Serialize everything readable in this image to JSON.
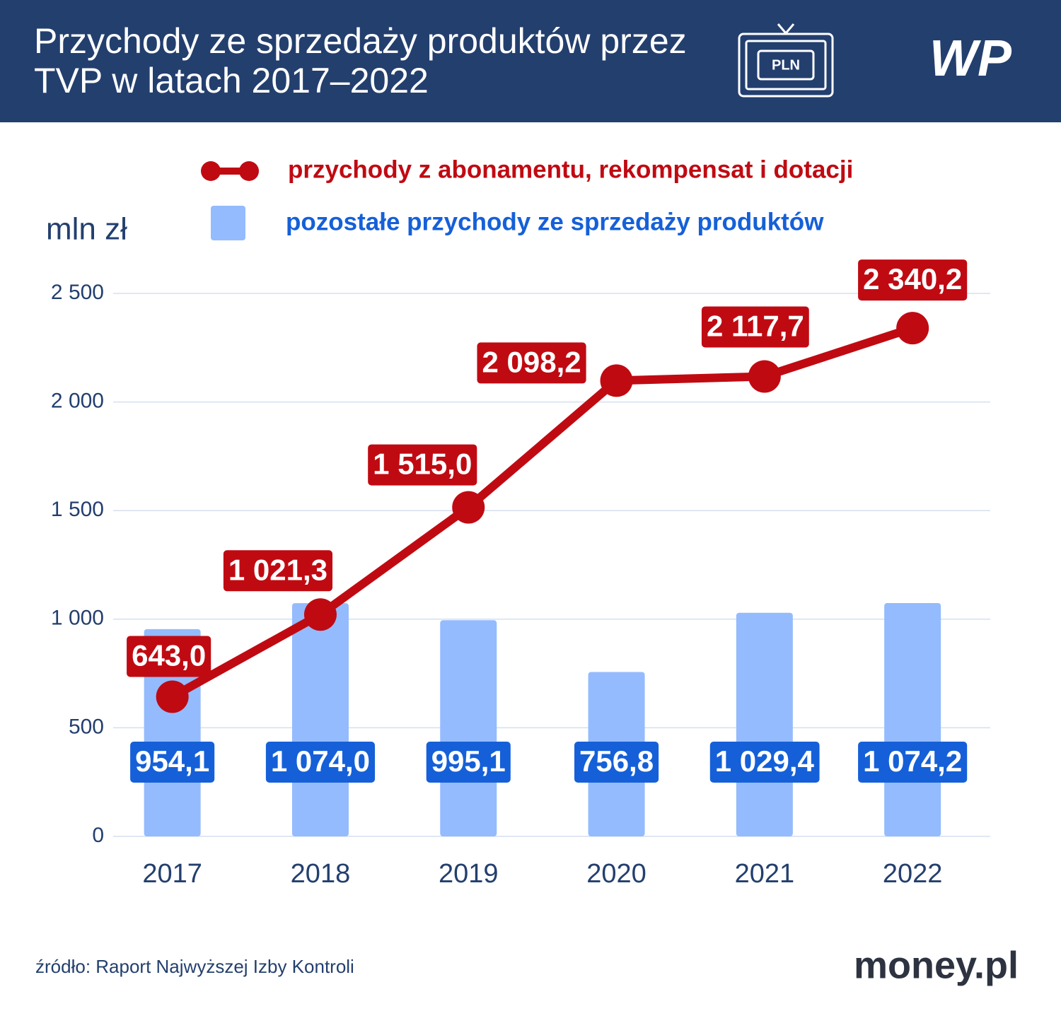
{
  "chart_data": {
    "type": "bar_line",
    "title": "Przychody ze sprzedaży produktów przez TVP w latach 2017–2022",
    "unit_label": "mln zł",
    "categories": [
      "2017",
      "2018",
      "2019",
      "2020",
      "2021",
      "2022"
    ],
    "series": [
      {
        "name": "przychody z abonamentu, rekompensat i dotacji",
        "type": "line",
        "color": "#c00a12",
        "values": [
          643.0,
          1021.3,
          1515.0,
          2098.2,
          2117.7,
          2340.2
        ],
        "value_labels": [
          "643,0",
          "1 021,3",
          "1 515,0",
          "2 098,2",
          "2 117,7",
          "2 340,2"
        ]
      },
      {
        "name": "pozostałe przychody ze sprzedaży produktów",
        "type": "bar",
        "color": "#94bbfd",
        "label_color": "#1560d8",
        "values": [
          954.1,
          1074.0,
          995.1,
          756.8,
          1029.4,
          1074.2
        ],
        "value_labels": [
          "954,1",
          "1 074,0",
          "995,1",
          "756,8",
          "1 029,4",
          "1 074,2"
        ]
      }
    ],
    "ylim": [
      0,
      2500
    ],
    "yticks": [
      0,
      500,
      {
        "value": 1000,
        "label": "1 000"
      },
      {
        "value": 1500,
        "label": "1 500"
      },
      {
        "value": 2000,
        "label": "2 000"
      },
      {
        "value": 2500,
        "label": "2 500"
      }
    ],
    "grid": true,
    "source": "źródło: Raport Najwyższej Izby Kontroli"
  },
  "branding": {
    "icon_label": "PLN",
    "logo": "WP",
    "brand": "money.pl"
  }
}
